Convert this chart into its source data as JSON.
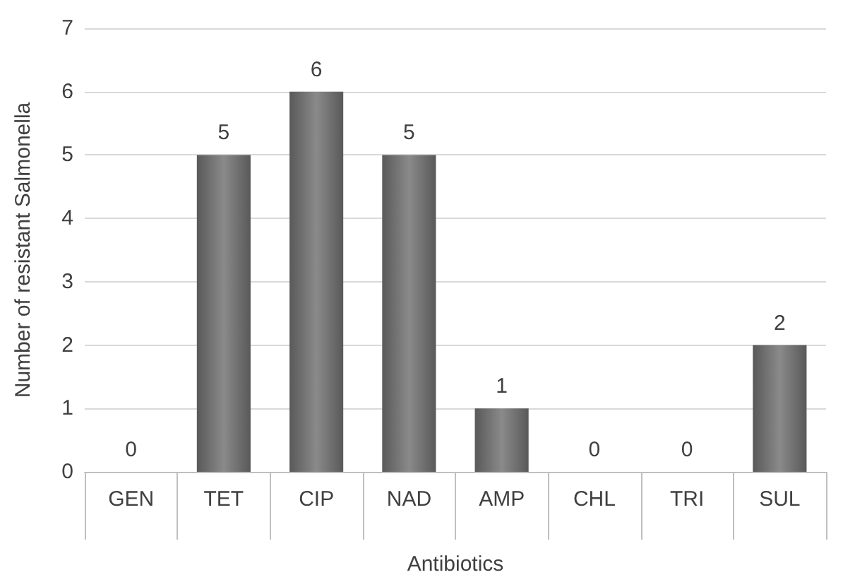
{
  "chart_data": {
    "type": "bar",
    "xlabel": "Antibiotics",
    "ylabel": "Number of resistant Salmonella",
    "categories": [
      "GEN",
      "TET",
      "CIP",
      "NAD",
      "AMP",
      "CHL",
      "TRI",
      "SUL"
    ],
    "values": [
      0,
      5,
      6,
      5,
      1,
      0,
      0,
      2
    ],
    "color": "#595959",
    "ylim": [
      0,
      7
    ],
    "yticks": [
      0,
      1,
      2,
      3,
      4,
      5,
      6,
      7
    ],
    "grid": "y",
    "data_labels": true
  }
}
